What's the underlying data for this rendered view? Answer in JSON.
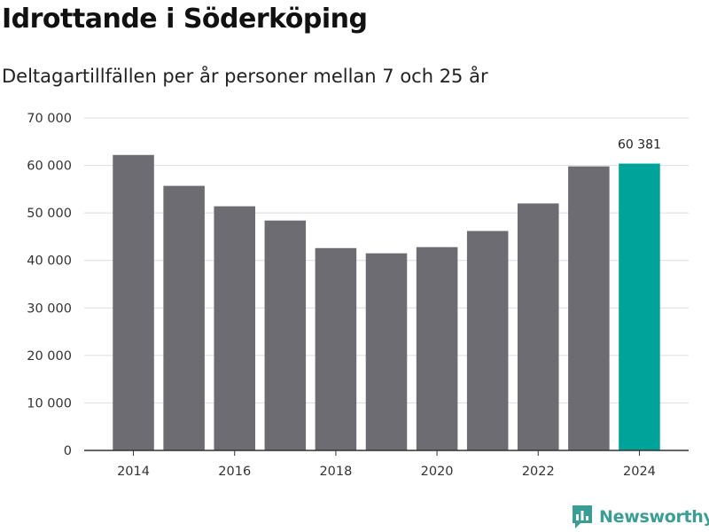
{
  "header": {
    "title": "Idrottande i Söderköping",
    "subtitle": "Deltagartillfällen per år personer mellan 7 och 25 år"
  },
  "brand": {
    "name": "Newsworthy",
    "color": "#3a9e96"
  },
  "colors": {
    "bar": "#6d6c72",
    "highlight": "#00a39a",
    "grid": "#dddddd",
    "axis": "#333333"
  },
  "chart_data": {
    "type": "bar",
    "title": "Idrottande i Söderköping",
    "subtitle": "Deltagartillfällen per år personer mellan 7 och 25 år",
    "xlabel": "",
    "ylabel": "",
    "ylim": [
      0,
      70000
    ],
    "yticks": [
      0,
      10000,
      20000,
      30000,
      40000,
      50000,
      60000,
      70000
    ],
    "ytick_labels": [
      "0",
      "10 000",
      "20 000",
      "30 000",
      "40 000",
      "50 000",
      "60 000",
      "70 000"
    ],
    "categories": [
      "2014",
      "2015",
      "2016",
      "2017",
      "2018",
      "2019",
      "2020",
      "2021",
      "2022",
      "2023",
      "2024"
    ],
    "xtick_labels": [
      "2014",
      "",
      "2016",
      "",
      "2018",
      "",
      "2020",
      "",
      "2022",
      "",
      "2024"
    ],
    "values": [
      62200,
      55700,
      51400,
      48400,
      42600,
      41500,
      42800,
      46200,
      52000,
      59800,
      60381
    ],
    "highlight_index": 10,
    "highlight_label": "60 381",
    "grid": true
  }
}
